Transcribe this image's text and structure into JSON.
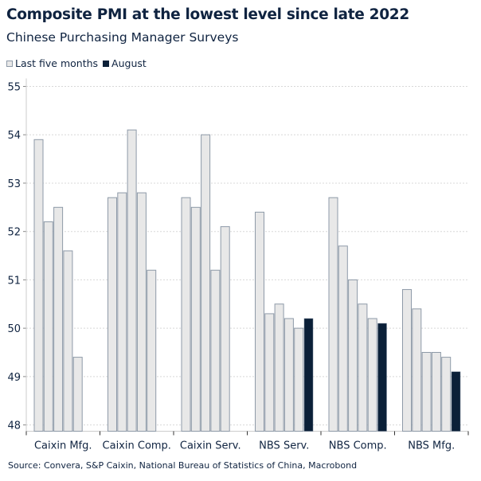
{
  "title": "Composite PMI at the lowest level since late 2022",
  "subtitle": "Chinese Purchasing Manager Surveys",
  "source": "Source: Convera, S&P Caixin, National Bureau of Statistics of China, Macrobond",
  "colors": {
    "last_five": "#e8e8e8",
    "last_five_border": "#8e9aa8",
    "august": "#0b2038",
    "text": "#0f2340",
    "grid": "#d8d8d8"
  },
  "chart_data": {
    "type": "bar",
    "title": "Composite PMI at the lowest level since late 2022",
    "subtitle": "Chinese Purchasing Manager Surveys",
    "legend": {
      "position": "top-left",
      "entries": [
        "Last five months",
        "August"
      ]
    },
    "categories": [
      "Caixin Mfg.",
      "Caixin Comp.",
      "Caixin Serv.",
      "NBS Serv.",
      "NBS Comp.",
      "NBS Mfg."
    ],
    "series": [
      {
        "name": "Last five months",
        "values": [
          [
            53.9,
            52.2,
            52.5,
            51.6,
            49.4
          ],
          [
            52.7,
            52.8,
            54.1,
            52.8,
            51.2
          ],
          [
            52.7,
            52.5,
            54.0,
            51.2,
            52.1
          ],
          [
            52.4,
            50.3,
            50.5,
            50.2,
            50.0
          ],
          [
            52.7,
            51.7,
            51.0,
            50.5,
            50.2
          ],
          [
            50.8,
            50.4,
            49.5,
            49.5,
            49.4
          ]
        ]
      },
      {
        "name": "August",
        "values": [
          null,
          null,
          null,
          50.2,
          50.1,
          49.1
        ]
      }
    ],
    "yticks": [
      48,
      49,
      50,
      51,
      52,
      53,
      54,
      55
    ],
    "ylim": [
      47.87,
      55
    ],
    "grid": true,
    "xlabel": "",
    "ylabel": ""
  }
}
